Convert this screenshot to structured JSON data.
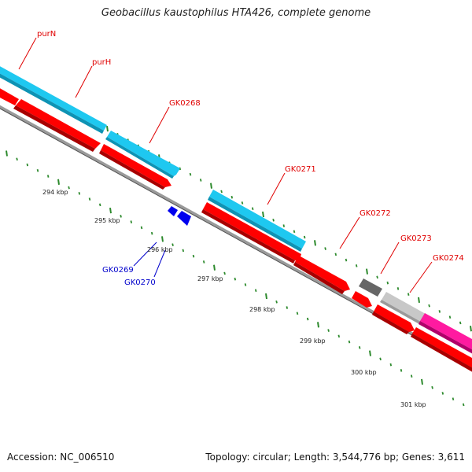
{
  "title": "Geobacillus kaustophilus HTA426, complete genome",
  "footer": {
    "accession": "Accession: NC_006510",
    "summary": "Topology: circular; Length: 3,544,776 bp; Genes: 3,611"
  },
  "colors": {
    "forward_gene": "#1ec8f0",
    "reverse_gene": "#ff0000",
    "small_gene": "#0000ee",
    "pseudo_dark": "#666666",
    "pseudo_light": "#c8c8c8",
    "special_gene": "#ff1aa0",
    "backbone": "#888888",
    "tick": "#2d8a2d",
    "label_red": "#e00000",
    "label_blue": "#0000cc"
  },
  "kbp_labels": [
    "294 kbp",
    "295 kbp",
    "296 kbp",
    "297 kbp",
    "298 kbp",
    "299 kbp",
    "300 kbp",
    "301 kbp"
  ],
  "gene_labels": [
    {
      "text": "purN",
      "color": "red"
    },
    {
      "text": "purH",
      "color": "red"
    },
    {
      "text": "GK0268",
      "color": "red"
    },
    {
      "text": "GK0271",
      "color": "red"
    },
    {
      "text": "GK0272",
      "color": "red"
    },
    {
      "text": "GK0273",
      "color": "red"
    },
    {
      "text": "GK0274",
      "color": "red"
    },
    {
      "text": "GK0269",
      "color": "blue"
    },
    {
      "text": "GK0270",
      "color": "blue"
    }
  ]
}
